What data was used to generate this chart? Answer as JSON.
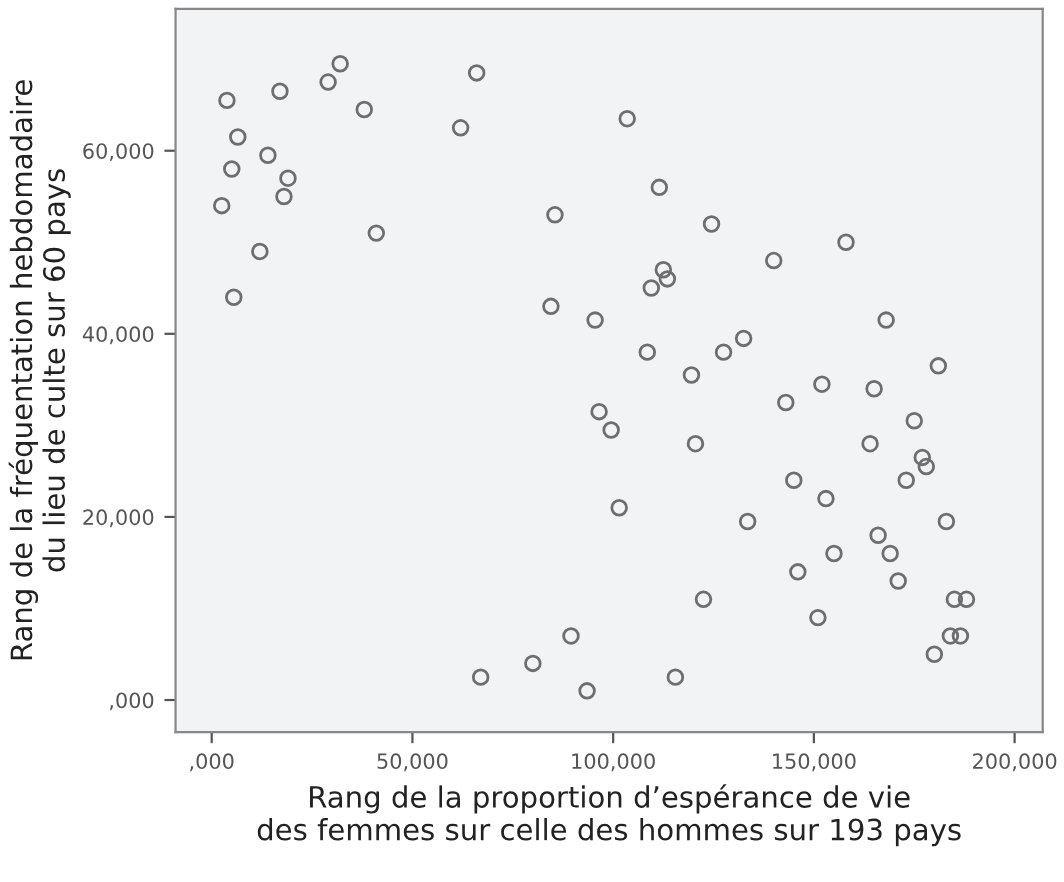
{
  "chart_data": {
    "type": "scatter",
    "xlabel": "Rang de la proportion d’espérance de vie\ndes femmes sur celle des hommes sur 193 pays",
    "ylabel": "Rang de la fréquentation hebdomadaire\ndu lieu de culte sur 60 pays",
    "x": [
      3800,
      32000,
      29000,
      17000,
      66000,
      38000,
      62000,
      6500,
      14000,
      5000,
      19000,
      18000,
      2500,
      85500,
      41000,
      12000,
      5500,
      84500,
      95500,
      103500,
      111500,
      124500,
      158000,
      140000,
      112500,
      113500,
      109500,
      168000,
      132500,
      108500,
      127500,
      119500,
      152000,
      181000,
      165000,
      143000,
      175000,
      120500,
      164000,
      177000,
      178000,
      145000,
      173000,
      153000,
      101500,
      133500,
      183000,
      166000,
      155000,
      169000,
      146000,
      171000,
      122500,
      185000,
      188000,
      151000,
      184000,
      186500,
      180000,
      115500,
      96500,
      99500,
      89500,
      80000,
      67000,
      93500
    ],
    "series": [
      {
        "color": "#6e6e6e",
        "values": [
          65500,
          69500,
          67500,
          66500,
          68500,
          64500,
          62500,
          61500,
          59500,
          58000,
          57000,
          55000,
          54000,
          53000,
          51000,
          49000,
          44000,
          43000,
          41500,
          63500,
          56000,
          52000,
          50000,
          48000,
          47000,
          46000,
          45000,
          41500,
          39500,
          38000,
          38000,
          35500,
          34500,
          36500,
          34000,
          32500,
          30500,
          28000,
          28000,
          26500,
          25500,
          24000,
          24000,
          22000,
          21000,
          19500,
          19500,
          18000,
          16000,
          16000,
          14000,
          13000,
          11000,
          11000,
          11000,
          9000,
          7000,
          7000,
          5000,
          2500,
          31500,
          29500,
          7000,
          4000,
          2500,
          1000
        ]
      }
    ],
    "xlim": [
      -9000,
      207000
    ],
    "ylim": [
      -3500,
      75500
    ],
    "xticks": [
      {
        "value": 0,
        "label": ",000"
      },
      {
        "value": 50000,
        "label": "50,000"
      },
      {
        "value": 100000,
        "label": "100,000"
      },
      {
        "value": 150000,
        "label": "150,000"
      },
      {
        "value": 200000,
        "label": "200,000"
      }
    ],
    "yticks": [
      {
        "value": 0,
        "label": ",000"
      },
      {
        "value": 20000,
        "label": "20,000"
      },
      {
        "value": 40000,
        "label": "40,000"
      },
      {
        "value": 60000,
        "label": "60,000"
      }
    ],
    "marker": "circle",
    "grid": false,
    "legend": false
  }
}
